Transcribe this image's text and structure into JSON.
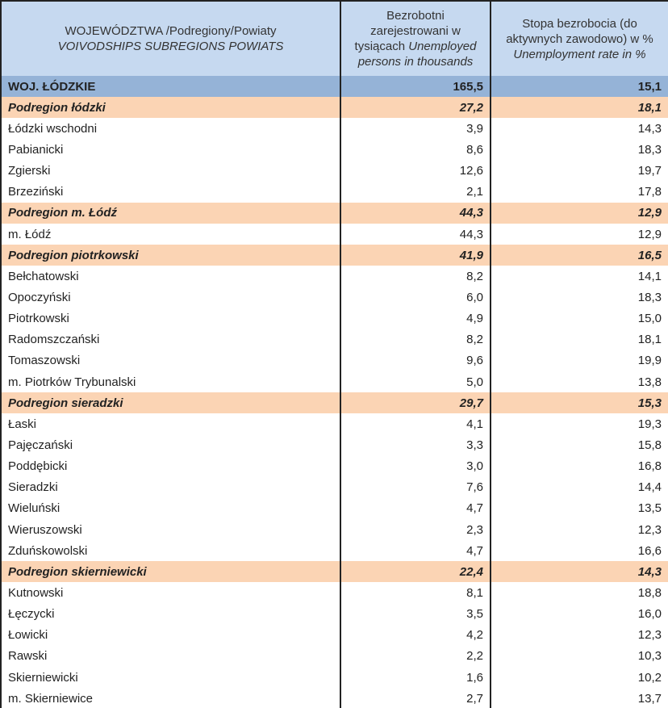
{
  "header": {
    "col1": "WOJEWÓDZTWA /Podregiony/Powiaty",
    "col1_en": "VOIVODSHIPS SUBREGIONS POWIATS",
    "col2": "Bezrobotni zarejestrowani w tysiącach",
    "col2_en": "Unemployed persons in thousands",
    "col3": "Stopa bezrobocia (do aktywnych zawodowo) w %",
    "col3_en": "Unemployment rate in %"
  },
  "colors": {
    "header": "#c6d9f0",
    "voivodship": "#95b3d7",
    "subregion": "#fbd4b4"
  },
  "rows": [
    {
      "type": "woj",
      "name": "WOJ. ŁÓDZKIE",
      "unemployed": "165,5",
      "rate": "15,1"
    },
    {
      "type": "sub",
      "name": "Podregion łódzki",
      "unemployed": "27,2",
      "rate": "18,1"
    },
    {
      "type": "pow",
      "name": "Łódzki wschodni",
      "unemployed": "3,9",
      "rate": "14,3"
    },
    {
      "type": "pow",
      "name": "Pabianicki",
      "unemployed": "8,6",
      "rate": "18,3"
    },
    {
      "type": "pow",
      "name": "Zgierski",
      "unemployed": "12,6",
      "rate": "19,7"
    },
    {
      "type": "pow",
      "name": "Brzeziński",
      "unemployed": "2,1",
      "rate": "17,8"
    },
    {
      "type": "sub",
      "name": "Podregion m. Łódź",
      "unemployed": "44,3",
      "rate": "12,9"
    },
    {
      "type": "pow",
      "name": "m. Łódź",
      "unemployed": "44,3",
      "rate": "12,9"
    },
    {
      "type": "sub",
      "name": "Podregion piotrkowski",
      "unemployed": "41,9",
      "rate": "16,5"
    },
    {
      "type": "pow",
      "name": "Bełchatowski",
      "unemployed": "8,2",
      "rate": "14,1"
    },
    {
      "type": "pow",
      "name": "Opoczyński",
      "unemployed": "6,0",
      "rate": "18,3"
    },
    {
      "type": "pow",
      "name": "Piotrkowski",
      "unemployed": "4,9",
      "rate": "15,0"
    },
    {
      "type": "pow",
      "name": "Radomszczański",
      "unemployed": "8,2",
      "rate": "18,1"
    },
    {
      "type": "pow",
      "name": "Tomaszowski",
      "unemployed": "9,6",
      "rate": "19,9"
    },
    {
      "type": "pow",
      "name": "m. Piotrków Trybunalski",
      "unemployed": "5,0",
      "rate": "13,8"
    },
    {
      "type": "sub",
      "name": "Podregion sieradzki",
      "unemployed": "29,7",
      "rate": "15,3"
    },
    {
      "type": "pow",
      "name": "Łaski",
      "unemployed": "4,1",
      "rate": "19,3"
    },
    {
      "type": "pow",
      "name": "Pajęczański",
      "unemployed": "3,3",
      "rate": "15,8"
    },
    {
      "type": "pow",
      "name": "Poddębicki",
      "unemployed": "3,0",
      "rate": "16,8"
    },
    {
      "type": "pow",
      "name": "Sieradzki",
      "unemployed": "7,6",
      "rate": "14,4"
    },
    {
      "type": "pow",
      "name": "Wieluński",
      "unemployed": "4,7",
      "rate": "13,5"
    },
    {
      "type": "pow",
      "name": "Wieruszowski",
      "unemployed": "2,3",
      "rate": "12,3"
    },
    {
      "type": "pow",
      "name": "Zduńskowolski",
      "unemployed": "4,7",
      "rate": "16,6"
    },
    {
      "type": "sub",
      "name": "Podregion skierniewicki",
      "unemployed": "22,4",
      "rate": "14,3"
    },
    {
      "type": "pow",
      "name": "Kutnowski",
      "unemployed": "8,1",
      "rate": "18,8"
    },
    {
      "type": "pow",
      "name": "Łęczycki",
      "unemployed": "3,5",
      "rate": "16,0"
    },
    {
      "type": "pow",
      "name": "Łowicki",
      "unemployed": "4,2",
      "rate": "12,3"
    },
    {
      "type": "pow",
      "name": "Rawski",
      "unemployed": "2,2",
      "rate": "10,3"
    },
    {
      "type": "pow",
      "name": "Skierniewicki",
      "unemployed": "1,6",
      "rate": "10,2"
    },
    {
      "type": "pow",
      "name": "m. Skierniewice",
      "unemployed": "2,7",
      "rate": "13,7"
    }
  ]
}
